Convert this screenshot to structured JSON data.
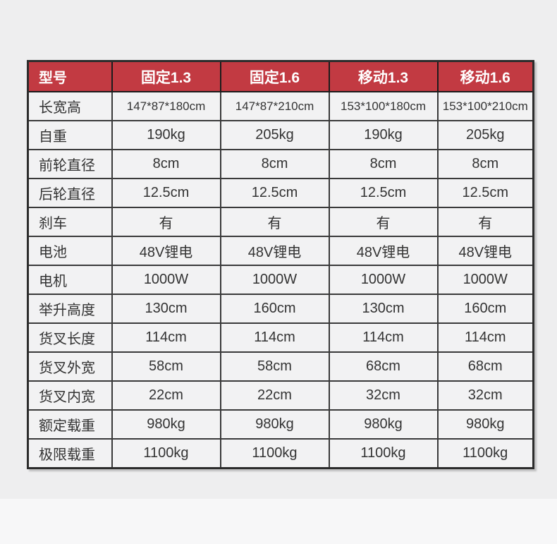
{
  "page": {
    "background_upper": "#eeeeef",
    "background_lower": "#f7f7f8"
  },
  "table": {
    "colors": {
      "header_bg": "#c23a42",
      "header_text": "#ffffff",
      "border": "#3a3a3a",
      "outer_border": "#2c2c2c",
      "cell_bg": "#f2f2f3",
      "text": "#333333"
    },
    "header": {
      "label": "型号",
      "columns": [
        "固定1.3",
        "固定1.6",
        "移动1.3",
        "移动1.6"
      ]
    },
    "rows": [
      {
        "label": "长宽高",
        "values": [
          "147*87*180cm",
          "147*87*210cm",
          "153*100*180cm",
          "153*100*210cm"
        ]
      },
      {
        "label": "自重",
        "values": [
          "190kg",
          "205kg",
          "190kg",
          "205kg"
        ]
      },
      {
        "label": "前轮直径",
        "values": [
          "8cm",
          "8cm",
          "8cm",
          "8cm"
        ]
      },
      {
        "label": "后轮直径",
        "values": [
          "12.5cm",
          "12.5cm",
          "12.5cm",
          "12.5cm"
        ]
      },
      {
        "label": "刹车",
        "values": [
          "有",
          "有",
          "有",
          "有"
        ]
      },
      {
        "label": "电池",
        "values": [
          "48V锂电",
          "48V锂电",
          "48V锂电",
          "48V锂电"
        ]
      },
      {
        "label": "电机",
        "values": [
          "1000W",
          "1000W",
          "1000W",
          "1000W"
        ]
      },
      {
        "label": "举升高度",
        "values": [
          "130cm",
          "160cm",
          "130cm",
          "160cm"
        ]
      },
      {
        "label": "货叉长度",
        "values": [
          "114cm",
          "114cm",
          "114cm",
          "114cm"
        ]
      },
      {
        "label": "货叉外宽",
        "values": [
          "58cm",
          "58cm",
          "68cm",
          "68cm"
        ]
      },
      {
        "label": "货叉内宽",
        "values": [
          "22cm",
          "22cm",
          "32cm",
          "32cm"
        ]
      },
      {
        "label": "额定载重",
        "values": [
          "980kg",
          "980kg",
          "980kg",
          "980kg"
        ]
      },
      {
        "label": "极限载重",
        "values": [
          "1100kg",
          "1100kg",
          "1100kg",
          "1100kg"
        ]
      }
    ]
  }
}
